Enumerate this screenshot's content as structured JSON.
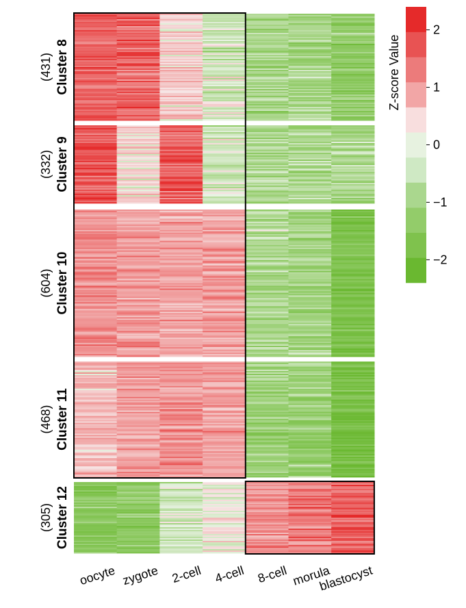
{
  "chart_data": {
    "type": "heatmap",
    "title": "",
    "xlabel": "",
    "ylabel": "",
    "categories": [
      "oocyte",
      "zygote",
      "2-cell",
      "4-cell",
      "8-cell",
      "morula",
      "blastocyst"
    ],
    "colorbar": {
      "title": "Z-score Value",
      "range": [
        -2.4,
        2.4
      ],
      "ticks": [
        {
          "value": 2,
          "label": "2"
        },
        {
          "value": 1,
          "label": "1"
        },
        {
          "value": 0,
          "label": "0"
        },
        {
          "value": -1,
          "label": "−1"
        },
        {
          "value": -2,
          "label": "−2"
        }
      ],
      "colors": [
        "#6ab830",
        "#7fc24d",
        "#93cc6a",
        "#aad78e",
        "#cfe9c4",
        "#e7f2e0",
        "#f8dede",
        "#f2a6a6",
        "#ec7b7b",
        "#e85353",
        "#e52a2a"
      ]
    },
    "clusters": [
      {
        "name": "Cluster 8",
        "count": "(431)",
        "mean_z": [
          1.7,
          1.7,
          0.3,
          -0.3,
          -0.9,
          -0.9,
          -1.3
        ]
      },
      {
        "name": "Cluster 9",
        "count": "(332)",
        "mean_z": [
          1.9,
          0.2,
          1.8,
          -0.4,
          -0.9,
          -0.9,
          -0.9
        ]
      },
      {
        "name": "Cluster 10",
        "count": "(604)",
        "mean_z": [
          1.2,
          1.0,
          0.9,
          1.0,
          -0.8,
          -1.0,
          -1.8
        ]
      },
      {
        "name": "Cluster 11",
        "count": "(468)",
        "mean_z": [
          0.6,
          1.0,
          1.1,
          1.0,
          -1.1,
          -1.1,
          -1.9
        ]
      },
      {
        "name": "Cluster 12",
        "count": "(305)",
        "mean_z": [
          -1.5,
          -1.3,
          -0.4,
          -0.1,
          1.1,
          1.4,
          1.8
        ]
      }
    ],
    "highlight_boxes": [
      {
        "clusters": [
          "Cluster 8",
          "Cluster 9",
          "Cluster 10",
          "Cluster 11"
        ],
        "columns": [
          "oocyte",
          "zygote",
          "2-cell",
          "4-cell"
        ]
      },
      {
        "clusters": [
          "Cluster 12"
        ],
        "columns": [
          "8-cell",
          "morula",
          "blastocyst"
        ]
      }
    ],
    "grid": false,
    "legend": "colorbar at top-right"
  }
}
